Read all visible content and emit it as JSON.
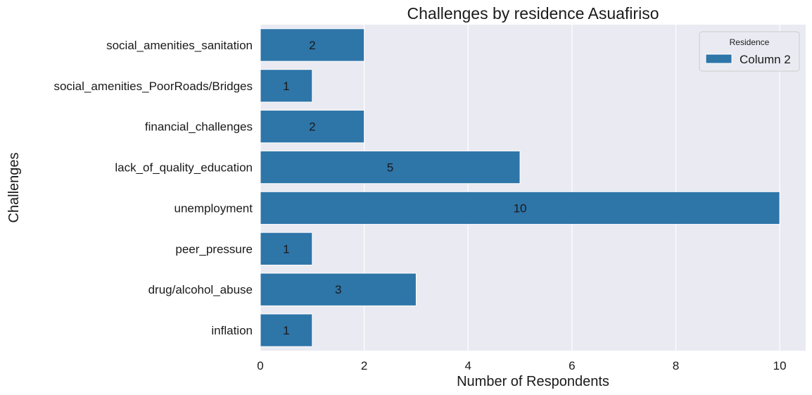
{
  "chart_data": {
    "type": "bar",
    "orientation": "horizontal",
    "title": "Challenges by residence Asuafiriso",
    "xlabel": "Number of Respondents",
    "ylabel": "Challenges",
    "categories": [
      "social_amenities_sanitation",
      "social_amenities_PoorRoads/Bridges",
      "financial_challenges",
      "lack_of_quality_education",
      "unemployment",
      "peer_pressure",
      "drug/alcohol_abuse",
      "inflation"
    ],
    "series": [
      {
        "name": "Column 2",
        "values": [
          2,
          1,
          2,
          5,
          10,
          1,
          3,
          1
        ]
      }
    ],
    "xlim": [
      0,
      10.5
    ],
    "xticks": [
      0,
      2,
      4,
      6,
      8,
      10
    ],
    "grid": true,
    "legend": {
      "title": "Residence",
      "position": "top-right"
    },
    "colors": {
      "bar": "#2e75a8",
      "background": "#eaeaf2",
      "grid": "#ffffff"
    }
  }
}
